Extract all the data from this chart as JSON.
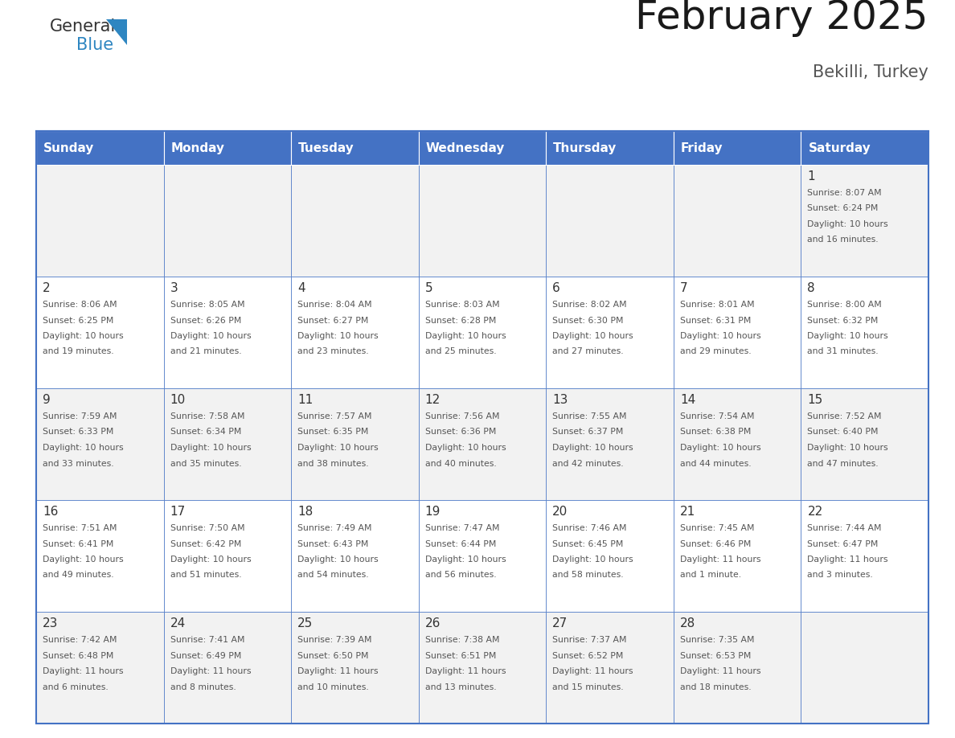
{
  "title": "February 2025",
  "subtitle": "Bekilli, Turkey",
  "days_of_week": [
    "Sunday",
    "Monday",
    "Tuesday",
    "Wednesday",
    "Thursday",
    "Friday",
    "Saturday"
  ],
  "header_bg": "#4472C4",
  "header_text_color": "#FFFFFF",
  "cell_bg_even": "#F2F2F2",
  "cell_bg_odd": "#FFFFFF",
  "cell_border_color": "#4472C4",
  "text_color": "#555555",
  "day_number_color": "#333333",
  "calendar_data": [
    [
      null,
      null,
      null,
      null,
      null,
      null,
      {
        "day": 1,
        "sunrise": "8:07 AM",
        "sunset": "6:24 PM",
        "daylight": "10 hours and 16 minutes."
      }
    ],
    [
      {
        "day": 2,
        "sunrise": "8:06 AM",
        "sunset": "6:25 PM",
        "daylight": "10 hours and 19 minutes."
      },
      {
        "day": 3,
        "sunrise": "8:05 AM",
        "sunset": "6:26 PM",
        "daylight": "10 hours and 21 minutes."
      },
      {
        "day": 4,
        "sunrise": "8:04 AM",
        "sunset": "6:27 PM",
        "daylight": "10 hours and 23 minutes."
      },
      {
        "day": 5,
        "sunrise": "8:03 AM",
        "sunset": "6:28 PM",
        "daylight": "10 hours and 25 minutes."
      },
      {
        "day": 6,
        "sunrise": "8:02 AM",
        "sunset": "6:30 PM",
        "daylight": "10 hours and 27 minutes."
      },
      {
        "day": 7,
        "sunrise": "8:01 AM",
        "sunset": "6:31 PM",
        "daylight": "10 hours and 29 minutes."
      },
      {
        "day": 8,
        "sunrise": "8:00 AM",
        "sunset": "6:32 PM",
        "daylight": "10 hours and 31 minutes."
      }
    ],
    [
      {
        "day": 9,
        "sunrise": "7:59 AM",
        "sunset": "6:33 PM",
        "daylight": "10 hours and 33 minutes."
      },
      {
        "day": 10,
        "sunrise": "7:58 AM",
        "sunset": "6:34 PM",
        "daylight": "10 hours and 35 minutes."
      },
      {
        "day": 11,
        "sunrise": "7:57 AM",
        "sunset": "6:35 PM",
        "daylight": "10 hours and 38 minutes."
      },
      {
        "day": 12,
        "sunrise": "7:56 AM",
        "sunset": "6:36 PM",
        "daylight": "10 hours and 40 minutes."
      },
      {
        "day": 13,
        "sunrise": "7:55 AM",
        "sunset": "6:37 PM",
        "daylight": "10 hours and 42 minutes."
      },
      {
        "day": 14,
        "sunrise": "7:54 AM",
        "sunset": "6:38 PM",
        "daylight": "10 hours and 44 minutes."
      },
      {
        "day": 15,
        "sunrise": "7:52 AM",
        "sunset": "6:40 PM",
        "daylight": "10 hours and 47 minutes."
      }
    ],
    [
      {
        "day": 16,
        "sunrise": "7:51 AM",
        "sunset": "6:41 PM",
        "daylight": "10 hours and 49 minutes."
      },
      {
        "day": 17,
        "sunrise": "7:50 AM",
        "sunset": "6:42 PM",
        "daylight": "10 hours and 51 minutes."
      },
      {
        "day": 18,
        "sunrise": "7:49 AM",
        "sunset": "6:43 PM",
        "daylight": "10 hours and 54 minutes."
      },
      {
        "day": 19,
        "sunrise": "7:47 AM",
        "sunset": "6:44 PM",
        "daylight": "10 hours and 56 minutes."
      },
      {
        "day": 20,
        "sunrise": "7:46 AM",
        "sunset": "6:45 PM",
        "daylight": "10 hours and 58 minutes."
      },
      {
        "day": 21,
        "sunrise": "7:45 AM",
        "sunset": "6:46 PM",
        "daylight": "11 hours and 1 minute."
      },
      {
        "day": 22,
        "sunrise": "7:44 AM",
        "sunset": "6:47 PM",
        "daylight": "11 hours and 3 minutes."
      }
    ],
    [
      {
        "day": 23,
        "sunrise": "7:42 AM",
        "sunset": "6:48 PM",
        "daylight": "11 hours and 6 minutes."
      },
      {
        "day": 24,
        "sunrise": "7:41 AM",
        "sunset": "6:49 PM",
        "daylight": "11 hours and 8 minutes."
      },
      {
        "day": 25,
        "sunrise": "7:39 AM",
        "sunset": "6:50 PM",
        "daylight": "11 hours and 10 minutes."
      },
      {
        "day": 26,
        "sunrise": "7:38 AM",
        "sunset": "6:51 PM",
        "daylight": "11 hours and 13 minutes."
      },
      {
        "day": 27,
        "sunrise": "7:37 AM",
        "sunset": "6:52 PM",
        "daylight": "11 hours and 15 minutes."
      },
      {
        "day": 28,
        "sunrise": "7:35 AM",
        "sunset": "6:53 PM",
        "daylight": "11 hours and 18 minutes."
      },
      null
    ]
  ],
  "logo_color_general": "#333333",
  "logo_color_blue": "#2E86C1",
  "logo_triangle_color": "#2E86C1"
}
